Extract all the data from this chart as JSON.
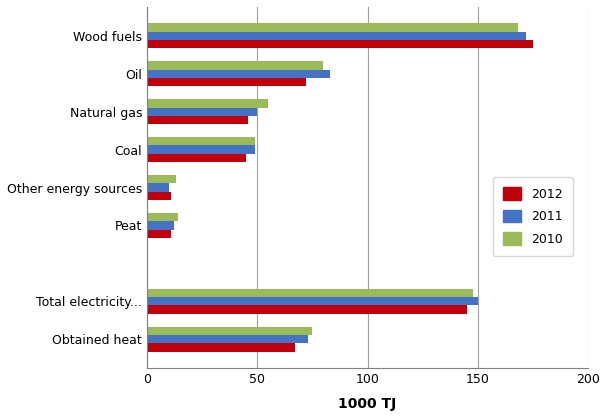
{
  "categories": [
    "Wood fuels",
    "Oil",
    "Natural gas",
    "Coal",
    "Other energy sources",
    "Peat",
    "",
    "Total electricity...",
    "Obtained heat"
  ],
  "series": {
    "2012": [
      175,
      72,
      46,
      45,
      11,
      11,
      0,
      145,
      67
    ],
    "2011": [
      172,
      83,
      50,
      49,
      10,
      12,
      0,
      150,
      73
    ],
    "2010": [
      168,
      80,
      55,
      49,
      13,
      14,
      0,
      148,
      75
    ]
  },
  "colors": {
    "2012": "#C0000A",
    "2011": "#4472C4",
    "2010": "#9BBB59"
  },
  "xlabel": "1000 TJ",
  "xlim": [
    0,
    200
  ],
  "xticks": [
    0,
    50,
    100,
    150,
    200
  ],
  "legend_order": [
    "2012",
    "2011",
    "2010"
  ],
  "bar_height": 0.22,
  "background_color": "#FFFFFF",
  "grid_color": "#A0A0A0"
}
